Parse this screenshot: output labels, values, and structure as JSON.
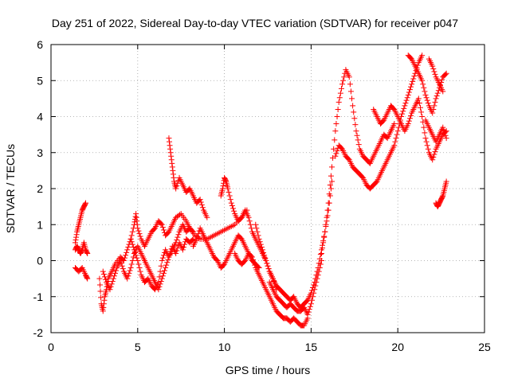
{
  "chart_data": {
    "type": "scatter",
    "title": "Day 251 of 2022, Sidereal Day-to-day VTEC variation (SDTVAR) for receiver p047",
    "xlabel": "GPS time / hours",
    "ylabel": "SDTVAR / TECUs",
    "xlim": [
      0,
      25
    ],
    "ylim": [
      -2,
      6
    ],
    "xticks": [
      "0",
      "5",
      "10",
      "15",
      "20",
      "25"
    ],
    "yticks": [
      "-2",
      "-1",
      "0",
      "1",
      "2",
      "3",
      "4",
      "5",
      "6"
    ],
    "grid": true,
    "marker": "+",
    "color": "#ff0000",
    "series": [
      {
        "name": "s1",
        "x": [
          1.4,
          1.5,
          1.6,
          1.7,
          1.8,
          1.9,
          2.0
        ],
        "y": [
          0.5,
          0.8,
          1.0,
          1.2,
          1.4,
          1.5,
          1.6
        ]
      },
      {
        "name": "s2",
        "x": [
          1.4,
          1.5,
          1.6,
          1.7,
          1.8,
          1.9,
          2.0,
          2.1
        ],
        "y": [
          0.3,
          0.4,
          0.3,
          0.2,
          0.3,
          0.5,
          0.3,
          0.2
        ]
      },
      {
        "name": "s3",
        "x": [
          1.4,
          1.6,
          1.8,
          2.0,
          2.1
        ],
        "y": [
          -0.2,
          -0.3,
          -0.2,
          -0.4,
          -0.5
        ]
      },
      {
        "name": "s4",
        "x": [
          2.8,
          2.9,
          3.0,
          3.1,
          3.2,
          3.3,
          3.5,
          3.7,
          4.0,
          4.2,
          4.4,
          4.6,
          4.8,
          4.9,
          5.0,
          5.2,
          5.4,
          5.6,
          5.8,
          6.0,
          6.2,
          6.4,
          6.6,
          6.8,
          7.0,
          7.2,
          7.5,
          7.8,
          8.0,
          8.2
        ],
        "y": [
          -0.5,
          -1.2,
          -1.4,
          -1.0,
          -0.8,
          -0.5,
          -0.3,
          -0.1,
          0.1,
          0.0,
          0.3,
          0.6,
          1.0,
          1.3,
          0.9,
          0.6,
          0.4,
          0.6,
          0.8,
          0.9,
          1.1,
          1.0,
          0.7,
          0.8,
          1.0,
          1.2,
          1.3,
          1.1,
          0.9,
          0.8
        ]
      },
      {
        "name": "s5",
        "x": [
          3.0,
          3.2,
          3.4,
          3.6,
          3.8,
          4.0,
          4.2,
          4.4,
          4.6,
          4.8,
          5.0,
          5.2,
          5.4,
          5.6,
          5.8,
          6.0,
          6.2,
          6.4,
          6.6,
          6.8,
          7.0,
          7.2,
          7.4,
          7.6,
          7.8,
          8.0,
          8.3,
          8.6,
          9.0,
          9.4,
          9.8,
          10.2,
          10.6,
          11.0,
          11.3
        ],
        "y": [
          -0.3,
          -0.6,
          -0.8,
          -0.5,
          -0.2,
          0.0,
          -0.3,
          -0.5,
          -0.2,
          0.2,
          0.4,
          0.2,
          0.0,
          -0.2,
          -0.4,
          -0.6,
          -0.8,
          -0.5,
          -0.2,
          0.1,
          0.3,
          0.5,
          0.8,
          1.0,
          0.8,
          0.9,
          0.7,
          0.6,
          0.6,
          0.7,
          0.8,
          0.9,
          1.0,
          1.2,
          1.4
        ]
      },
      {
        "name": "s6",
        "x": [
          4.6,
          4.8,
          5.0,
          5.2,
          5.4,
          5.6,
          5.8,
          6.0,
          6.2,
          6.4,
          6.6,
          6.8,
          7.0,
          7.2,
          7.4,
          7.6,
          7.8,
          8.0,
          8.2
        ],
        "y": [
          0.6,
          0.3,
          0.0,
          -0.4,
          -0.6,
          -0.5,
          -0.7,
          -0.8,
          -0.6,
          0.0,
          0.3,
          0.1,
          0.4,
          0.2,
          0.5,
          0.3,
          0.6,
          0.5,
          0.6
        ]
      },
      {
        "name": "s7",
        "x": [
          6.8,
          6.9,
          7.0,
          7.1,
          7.2,
          7.4,
          7.6,
          7.8,
          8.0,
          8.2,
          8.4,
          8.6,
          8.8,
          9.0
        ],
        "y": [
          3.4,
          3.0,
          2.6,
          2.2,
          2.0,
          2.3,
          2.1,
          1.9,
          2.0,
          1.8,
          1.6,
          1.7,
          1.4,
          1.2
        ]
      },
      {
        "name": "s8",
        "x": [
          9.8,
          9.9,
          10.0,
          10.1,
          10.2,
          10.4,
          10.6,
          10.8,
          11.0,
          11.2,
          11.4,
          11.6,
          11.8,
          12.0,
          12.2,
          12.4,
          12.6,
          12.8,
          13.0
        ],
        "y": [
          1.8,
          2.0,
          2.3,
          2.2,
          2.0,
          1.6,
          1.3,
          1.1,
          1.2,
          1.4,
          1.2,
          0.8,
          0.6,
          0.4,
          0.2,
          0.0,
          -0.3,
          -0.5,
          -0.8
        ]
      },
      {
        "name": "s9",
        "x": [
          8.2,
          8.4,
          8.6,
          8.8,
          9.0,
          9.2,
          9.4,
          9.6,
          9.8,
          10.0,
          10.2,
          10.4,
          10.6,
          10.8,
          11.0,
          11.2,
          11.4,
          11.6,
          11.8,
          12.0
        ],
        "y": [
          0.4,
          0.6,
          0.9,
          0.7,
          0.5,
          0.3,
          0.1,
          0.0,
          -0.2,
          -0.1,
          0.1,
          0.3,
          0.5,
          0.7,
          0.6,
          0.4,
          0.2,
          0.0,
          -0.1,
          -0.2
        ]
      },
      {
        "name": "s10",
        "x": [
          10.6,
          10.8,
          11.0,
          11.2,
          11.4,
          11.6,
          11.8,
          12.0,
          12.2,
          12.4,
          12.6,
          12.8,
          13.0,
          13.2,
          13.4,
          13.6,
          13.8,
          14.0,
          14.2,
          14.4,
          14.6,
          14.8
        ],
        "y": [
          0.2,
          0.0,
          -0.1,
          0.0,
          0.2,
          0.1,
          -0.2,
          -0.4,
          -0.6,
          -0.8,
          -1.0,
          -1.2,
          -1.4,
          -1.5,
          -1.6,
          -1.6,
          -1.7,
          -1.6,
          -1.7,
          -1.8,
          -1.8,
          -1.6
        ]
      },
      {
        "name": "s11",
        "x": [
          11.8,
          12.0,
          12.2,
          12.4,
          12.6,
          12.8,
          13.0,
          13.2,
          13.4,
          13.6,
          13.8,
          14.0,
          14.2,
          14.4,
          14.6,
          14.8,
          15.0,
          15.2,
          15.4,
          15.6,
          15.8,
          16.0,
          16.2
        ],
        "y": [
          1.0,
          0.6,
          0.3,
          0.0,
          -0.3,
          -0.5,
          -0.7,
          -0.8,
          -0.9,
          -1.0,
          -1.1,
          -1.0,
          -1.2,
          -1.3,
          -1.2,
          -1.1,
          -0.9,
          -0.6,
          -0.2,
          0.3,
          0.8,
          1.4,
          2.2
        ]
      },
      {
        "name": "s12",
        "x": [
          12.6,
          12.8,
          13.0,
          13.2,
          13.4,
          13.6,
          13.8,
          14.0,
          14.2,
          14.4,
          14.6,
          14.8,
          15.0,
          15.2,
          15.4,
          15.6
        ],
        "y": [
          -0.6,
          -0.8,
          -1.0,
          -1.1,
          -1.2,
          -1.3,
          -1.2,
          -1.3,
          -1.4,
          -1.4,
          -1.3,
          -1.5,
          -1.2,
          -0.8,
          -0.4,
          0.0
        ]
      },
      {
        "name": "s13",
        "x": [
          15.6,
          15.8,
          16.0,
          16.2,
          16.4,
          16.6,
          16.8,
          17.0,
          17.2,
          17.4,
          17.6,
          17.8,
          18.0,
          18.2,
          18.4,
          18.6,
          18.8,
          19.0,
          19.2,
          19.4,
          19.6,
          19.8
        ],
        "y": [
          0.2,
          0.8,
          1.6,
          2.6,
          3.6,
          4.4,
          4.9,
          5.3,
          5.1,
          4.3,
          3.6,
          3.1,
          2.9,
          2.8,
          2.7,
          2.9,
          3.1,
          3.3,
          3.5,
          3.4,
          3.6,
          3.8
        ]
      },
      {
        "name": "s14",
        "x": [
          16.4,
          16.6,
          16.8,
          17.0,
          17.2,
          17.4,
          17.6,
          17.8,
          18.0,
          18.2,
          18.4,
          18.6,
          18.8,
          19.0,
          19.2,
          19.4,
          19.6,
          19.8,
          20.0,
          20.2,
          20.4,
          20.6,
          20.8,
          21.0,
          21.2,
          21.4
        ],
        "y": [
          2.9,
          3.2,
          3.1,
          2.9,
          2.8,
          2.6,
          2.5,
          2.4,
          2.3,
          2.1,
          2.0,
          2.1,
          2.2,
          2.4,
          2.6,
          2.8,
          3.0,
          3.2,
          3.6,
          4.0,
          4.3,
          4.6,
          4.9,
          5.2,
          5.5,
          5.7
        ]
      },
      {
        "name": "s15",
        "x": [
          18.6,
          18.8,
          19.0,
          19.2,
          19.4,
          19.6,
          19.8,
          20.0,
          20.2,
          20.4,
          20.6,
          20.8,
          21.0,
          21.2,
          21.4,
          21.6,
          21.8,
          22.0,
          22.2,
          22.4,
          22.6,
          22.8
        ],
        "y": [
          4.2,
          4.0,
          3.8,
          3.9,
          4.1,
          4.3,
          4.2,
          4.0,
          3.8,
          3.6,
          3.8,
          4.1,
          4.3,
          4.5,
          4.0,
          3.4,
          3.0,
          2.8,
          3.1,
          3.3,
          3.5,
          3.6
        ]
      },
      {
        "name": "s16",
        "x": [
          20.6,
          20.8,
          21.0,
          21.2,
          21.4,
          21.6,
          21.8,
          22.0,
          22.2,
          22.4,
          22.6,
          22.8
        ],
        "y": [
          5.7,
          5.6,
          5.4,
          5.2,
          5.0,
          4.6,
          4.3,
          4.1,
          4.5,
          4.8,
          5.1,
          5.2
        ]
      },
      {
        "name": "s17",
        "x": [
          21.6,
          21.8,
          22.0,
          22.2,
          22.4,
          22.6,
          22.8
        ],
        "y": [
          3.9,
          3.7,
          3.5,
          3.3,
          3.5,
          3.7,
          3.4
        ]
      },
      {
        "name": "s18",
        "x": [
          22.2,
          22.3,
          22.4,
          22.5,
          22.6,
          22.7,
          22.8
        ],
        "y": [
          1.6,
          1.5,
          1.6,
          1.7,
          1.8,
          2.0,
          2.2
        ]
      },
      {
        "name": "s19",
        "x": [
          21.8,
          22.0,
          22.2,
          22.4,
          22.6
        ],
        "y": [
          5.6,
          5.4,
          5.1,
          4.9,
          4.7
        ]
      }
    ]
  }
}
